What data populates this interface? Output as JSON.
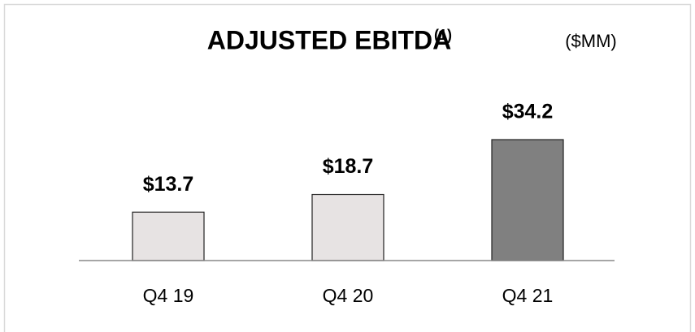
{
  "chart_data": {
    "type": "bar",
    "title": "ADJUSTED EBITDA",
    "title_note": "(1)",
    "unit": "($MM)",
    "categories": [
      "Q4 19",
      "Q4 20",
      "Q4 21"
    ],
    "values": [
      13.7,
      18.7,
      34.2
    ],
    "value_labels": [
      "$13.7",
      "$18.7",
      "$34.2"
    ],
    "colors": [
      "#e7e3e3",
      "#e7e3e3",
      "#808080"
    ]
  }
}
